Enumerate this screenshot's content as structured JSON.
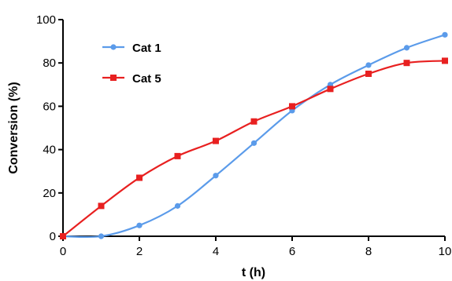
{
  "chart_data": {
    "type": "scatter",
    "xlabel": "t (h)",
    "ylabel": "Conversion (%)",
    "xlim": [
      0,
      10
    ],
    "ylim": [
      0,
      100
    ],
    "xticks": [
      "0",
      "2",
      "4",
      "6",
      "8",
      "10"
    ],
    "yticks": [
      "0",
      "20",
      "40",
      "60",
      "80",
      "100"
    ],
    "legend_position": "top-left",
    "grid": false,
    "series": [
      {
        "name": "Cat 1",
        "color": "#5b9bea",
        "marker": "circle",
        "fit_curve": true,
        "x": [
          0,
          1,
          2,
          3,
          4,
          5,
          6,
          7,
          8,
          9,
          10
        ],
        "y": [
          0,
          0,
          5,
          14,
          28,
          43,
          58,
          70,
          79,
          87,
          93
        ]
      },
      {
        "name": "Cat 5",
        "color": "#e82020",
        "marker": "square",
        "fit_curve": true,
        "x": [
          0,
          1,
          2,
          3,
          4,
          5,
          6,
          7,
          8,
          9,
          10
        ],
        "y": [
          0,
          14,
          27,
          37,
          44,
          53,
          60,
          68,
          75,
          80,
          81
        ]
      }
    ]
  }
}
